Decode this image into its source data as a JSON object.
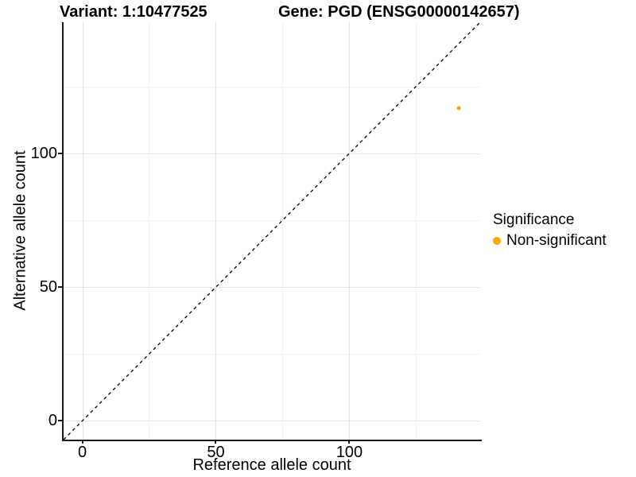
{
  "chart_data": {
    "type": "scatter",
    "title_variant": "Variant: 1:10477525",
    "title_gene": "Gene: PGD (ENSG00000142657)",
    "xlabel": "Reference allele count",
    "ylabel": "Alternative allele count",
    "xlim": [
      -7,
      149
    ],
    "ylim": [
      -7,
      149
    ],
    "x_major_ticks": [
      0,
      50,
      100
    ],
    "x_minor_ticks": [
      25,
      75,
      125
    ],
    "y_major_ticks": [
      0,
      50,
      100
    ],
    "y_minor_ticks": [
      25,
      75,
      125
    ],
    "grid": "major+minor",
    "identity_line": {
      "equation": "y = x",
      "style": "dashed",
      "color": "#000000"
    },
    "series": [
      {
        "name": "Non-significant",
        "color": "#FFA500",
        "points": [
          {
            "x": 141,
            "y": 117
          }
        ]
      }
    ]
  },
  "legend": {
    "title": "Significance",
    "position": "right",
    "items": [
      {
        "label": "Non-significant",
        "color": "#FFA500"
      }
    ]
  },
  "colors": {
    "background": "#ffffff",
    "axis_line": "#1a1a1a",
    "grid_major": "#e4e4e4",
    "grid_minor": "#f1f1f1",
    "text": "#000000"
  }
}
